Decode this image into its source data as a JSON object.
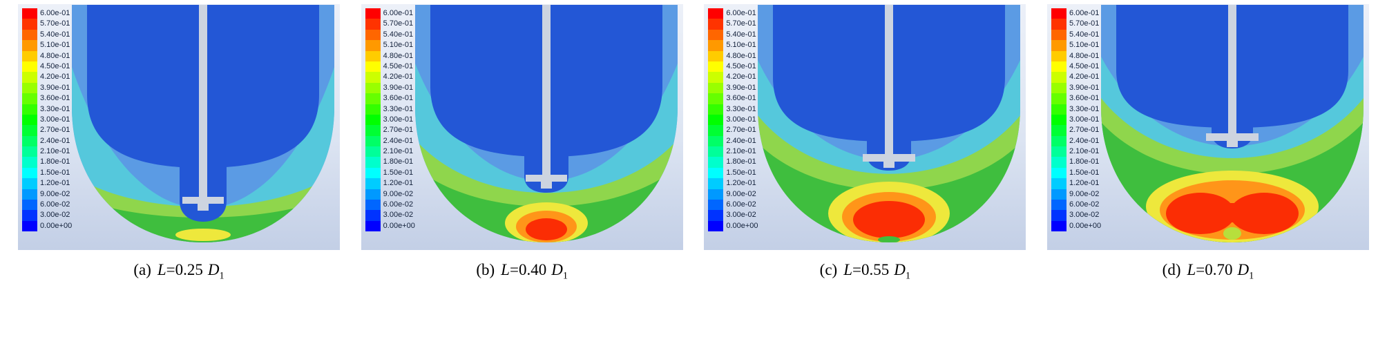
{
  "figure": {
    "legend": {
      "values": [
        "6.00e-01",
        "5.70e-01",
        "5.40e-01",
        "5.10e-01",
        "4.80e-01",
        "4.50e-01",
        "4.20e-01",
        "3.90e-01",
        "3.60e-01",
        "3.30e-01",
        "3.00e-01",
        "2.70e-01",
        "2.40e-01",
        "2.10e-01",
        "1.80e-01",
        "1.50e-01",
        "1.20e-01",
        "9.00e-02",
        "6.00e-02",
        "3.00e-02",
        "0.00e+00"
      ],
      "colors": [
        "#FF0000",
        "#FF3300",
        "#FF6600",
        "#FF9900",
        "#FFCC00",
        "#FFFF00",
        "#CCFF00",
        "#99FF00",
        "#66FF00",
        "#33FF00",
        "#00FF00",
        "#00FF33",
        "#00FF66",
        "#00FF99",
        "#00FFCC",
        "#00FFFF",
        "#00CCFF",
        "#0099FF",
        "#0066FF",
        "#0033FF",
        "#0000FF"
      ]
    },
    "panels": [
      {
        "label": "(a)",
        "var1": "L",
        "value": "=0.25",
        "var2": "D",
        "sub": "1"
      },
      {
        "label": "(b)",
        "var1": "L",
        "value": "=0.40",
        "var2": "D",
        "sub": "1"
      },
      {
        "label": "(c)",
        "var1": "L",
        "value": "=0.55",
        "var2": "D",
        "sub": "1"
      },
      {
        "label": "(d)",
        "var1": "L",
        "value": "=0.70",
        "var2": "D",
        "sub": "1"
      }
    ]
  },
  "chart_data": {
    "type": "heatmap",
    "subtype": "CFD contour plots of stirred vessel, four impeller clearances",
    "colorbar": {
      "position": "left of each panel",
      "min": 0.0,
      "max": 0.6,
      "step": 0.03,
      "tick_values": [
        0.6,
        0.57,
        0.54,
        0.51,
        0.48,
        0.45,
        0.42,
        0.39,
        0.36,
        0.33,
        0.3,
        0.27,
        0.24,
        0.21,
        0.18,
        0.15,
        0.12,
        0.09,
        0.06,
        0.03,
        0.0
      ],
      "tick_labels": [
        "6.00e-01",
        "5.70e-01",
        "5.40e-01",
        "5.10e-01",
        "4.80e-01",
        "4.50e-01",
        "4.20e-01",
        "3.90e-01",
        "3.60e-01",
        "3.30e-01",
        "3.00e-01",
        "2.70e-01",
        "2.40e-01",
        "2.10e-01",
        "1.80e-01",
        "1.50e-01",
        "1.20e-01",
        "9.00e-02",
        "6.00e-02",
        "3.00e-02",
        "0.00e+00"
      ],
      "colormap": "rainbow (red = 0.6 max, blue = 0.0 min)"
    },
    "panels": [
      {
        "caption": "(a) L=0.25 D1",
        "L_over_D1": 0.25,
        "observation": "shaft reaches near vessel bottom; field mostly blue with thin green band along curved bottom, no red zone"
      },
      {
        "caption": "(b) L=0.40 D1",
        "L_over_D1": 0.4,
        "observation": "small red high-value zone at bottom center surrounded by orange/yellow/green rings"
      },
      {
        "caption": "(c) L=0.55 D1",
        "L_over_D1": 0.55,
        "observation": "medium red zone at bottom center, broad green region above it"
      },
      {
        "caption": "(d) L=0.70 D1",
        "L_over_D1": 0.7,
        "observation": "wide two-lobed red zone spanning the vessel bottom; impeller highest above bottom"
      }
    ]
  }
}
